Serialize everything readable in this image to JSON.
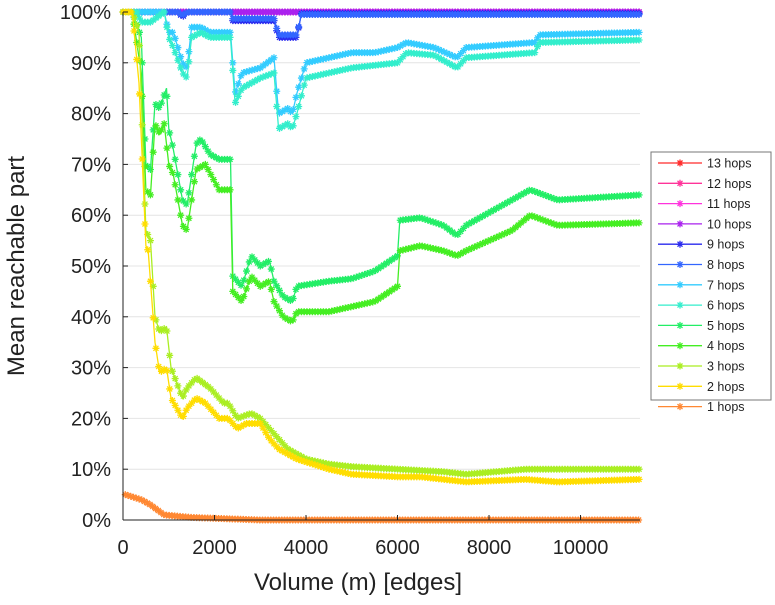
{
  "chart_data": {
    "type": "line",
    "title": "",
    "xlabel": "Volume (m) [edges]",
    "ylabel": "Mean reachable part",
    "xlim": [
      0,
      11300
    ],
    "ylim": [
      0,
      100
    ],
    "xticks": [
      0,
      2000,
      4000,
      6000,
      8000,
      10000
    ],
    "xtick_labels": [
      "0",
      "2000",
      "4000",
      "6000",
      "8000",
      "10000"
    ],
    "yticks": [
      0,
      10,
      20,
      30,
      40,
      50,
      60,
      70,
      80,
      90,
      100
    ],
    "ytick_labels": [
      "0%",
      "10%",
      "20%",
      "30%",
      "40%",
      "50%",
      "60%",
      "70%",
      "80%",
      "90%",
      "100%"
    ],
    "grid": "horizontal",
    "legend_position": "right",
    "series": [
      {
        "name": "13 hops",
        "color": "#ff2a2a",
        "points": [
          [
            0,
            100
          ],
          [
            11300,
            100
          ]
        ]
      },
      {
        "name": "12 hops",
        "color": "#ff3399",
        "points": [
          [
            0,
            100
          ],
          [
            11300,
            100
          ]
        ]
      },
      {
        "name": "11 hops",
        "color": "#ff33dd",
        "points": [
          [
            0,
            100
          ],
          [
            11300,
            100
          ]
        ]
      },
      {
        "name": "10 hops",
        "color": "#aa22ee",
        "points": [
          [
            0,
            100
          ],
          [
            11300,
            100
          ]
        ]
      },
      {
        "name": "9 hops",
        "color": "#2a2aee",
        "points": [
          [
            0,
            100
          ],
          [
            1200,
            100
          ],
          [
            1300,
            99
          ],
          [
            1400,
            100
          ],
          [
            2350,
            100
          ],
          [
            2400,
            98.3
          ],
          [
            3300,
            98.3
          ],
          [
            3400,
            95
          ],
          [
            3800,
            95
          ],
          [
            3900,
            99.7
          ],
          [
            11300,
            99.7
          ]
        ]
      },
      {
        "name": "8 hops",
        "color": "#3366ff",
        "points": [
          [
            0,
            100
          ],
          [
            1200,
            100
          ],
          [
            1300,
            99.3
          ],
          [
            1400,
            100
          ],
          [
            2350,
            100
          ],
          [
            2400,
            98.7
          ],
          [
            3300,
            98.7
          ],
          [
            3400,
            95.5
          ],
          [
            3800,
            95.5
          ],
          [
            3900,
            99.5
          ],
          [
            11300,
            99.5
          ]
        ]
      },
      {
        "name": "7 hops",
        "color": "#33ccff",
        "points": [
          [
            0,
            100
          ],
          [
            300,
            100
          ],
          [
            900,
            100
          ],
          [
            1000,
            96
          ],
          [
            1100,
            96
          ],
          [
            1300,
            90
          ],
          [
            1400,
            89
          ],
          [
            1500,
            97
          ],
          [
            1700,
            97
          ],
          [
            1900,
            96
          ],
          [
            2350,
            96
          ],
          [
            2450,
            84
          ],
          [
            2600,
            88
          ],
          [
            3000,
            89
          ],
          [
            3300,
            91
          ],
          [
            3400,
            80
          ],
          [
            3600,
            81
          ],
          [
            3700,
            80
          ],
          [
            3800,
            84
          ],
          [
            4000,
            90
          ],
          [
            4500,
            91
          ],
          [
            5000,
            92
          ],
          [
            5500,
            92
          ],
          [
            6000,
            93
          ],
          [
            6200,
            94
          ],
          [
            6800,
            93
          ],
          [
            7300,
            91
          ],
          [
            7500,
            93
          ],
          [
            9000,
            94
          ],
          [
            9100,
            95.5
          ],
          [
            11300,
            96
          ]
        ]
      },
      {
        "name": "6 hops",
        "color": "#33eecc",
        "points": [
          [
            0,
            100
          ],
          [
            300,
            100
          ],
          [
            400,
            98
          ],
          [
            600,
            98
          ],
          [
            900,
            100
          ],
          [
            1000,
            95
          ],
          [
            1100,
            93
          ],
          [
            1300,
            88
          ],
          [
            1400,
            87
          ],
          [
            1500,
            95
          ],
          [
            1700,
            96
          ],
          [
            1900,
            95
          ],
          [
            2350,
            95
          ],
          [
            2450,
            82
          ],
          [
            2600,
            85
          ],
          [
            3000,
            87
          ],
          [
            3300,
            88
          ],
          [
            3400,
            77
          ],
          [
            3600,
            78
          ],
          [
            3700,
            77
          ],
          [
            3800,
            80
          ],
          [
            4000,
            87
          ],
          [
            4500,
            88
          ],
          [
            5000,
            89
          ],
          [
            5500,
            89.5
          ],
          [
            6000,
            90
          ],
          [
            6200,
            92
          ],
          [
            6800,
            91.5
          ],
          [
            7300,
            89
          ],
          [
            7500,
            91
          ],
          [
            9000,
            92
          ],
          [
            9100,
            94
          ],
          [
            11300,
            94.5
          ]
        ]
      },
      {
        "name": "5 hops",
        "color": "#22ee66",
        "points": [
          [
            0,
            100
          ],
          [
            200,
            100
          ],
          [
            400,
            95
          ],
          [
            500,
            70
          ],
          [
            600,
            69
          ],
          [
            700,
            82
          ],
          [
            800,
            81
          ],
          [
            950,
            85
          ],
          [
            1000,
            77
          ],
          [
            1100,
            73
          ],
          [
            1300,
            63
          ],
          [
            1400,
            62
          ],
          [
            1600,
            74
          ],
          [
            1700,
            75
          ],
          [
            1900,
            72
          ],
          [
            2100,
            71
          ],
          [
            2350,
            71
          ],
          [
            2400,
            48
          ],
          [
            2600,
            46
          ],
          [
            2800,
            52
          ],
          [
            3000,
            50
          ],
          [
            3200,
            51
          ],
          [
            3300,
            47
          ],
          [
            3500,
            44
          ],
          [
            3700,
            43
          ],
          [
            3800,
            46
          ],
          [
            4500,
            47
          ],
          [
            5000,
            47.5
          ],
          [
            5500,
            49
          ],
          [
            6000,
            52
          ],
          [
            6050,
            59
          ],
          [
            6500,
            59.5
          ],
          [
            7000,
            58
          ],
          [
            7300,
            56
          ],
          [
            7500,
            58
          ],
          [
            8300,
            62
          ],
          [
            8900,
            65
          ],
          [
            9500,
            63
          ],
          [
            11300,
            64
          ]
        ]
      },
      {
        "name": "4 hops",
        "color": "#44ee22",
        "points": [
          [
            0,
            100
          ],
          [
            200,
            100
          ],
          [
            400,
            88
          ],
          [
            500,
            65
          ],
          [
            600,
            64
          ],
          [
            700,
            78
          ],
          [
            800,
            76
          ],
          [
            900,
            78
          ],
          [
            1000,
            70
          ],
          [
            1100,
            68
          ],
          [
            1300,
            58
          ],
          [
            1400,
            57
          ],
          [
            1600,
            69
          ],
          [
            1800,
            70
          ],
          [
            2100,
            65
          ],
          [
            2350,
            65
          ],
          [
            2400,
            45
          ],
          [
            2600,
            43
          ],
          [
            2800,
            48
          ],
          [
            3000,
            46
          ],
          [
            3200,
            47
          ],
          [
            3300,
            43
          ],
          [
            3500,
            40
          ],
          [
            3700,
            39
          ],
          [
            3800,
            41
          ],
          [
            4500,
            41
          ],
          [
            5000,
            42
          ],
          [
            5500,
            43
          ],
          [
            6000,
            46
          ],
          [
            6050,
            53
          ],
          [
            6500,
            54
          ],
          [
            7000,
            53
          ],
          [
            7300,
            52
          ],
          [
            7500,
            53
          ],
          [
            8500,
            57
          ],
          [
            8900,
            60
          ],
          [
            9500,
            58
          ],
          [
            11300,
            58.5
          ]
        ]
      },
      {
        "name": "3 hops",
        "color": "#aaee22",
        "points": [
          [
            0,
            100
          ],
          [
            200,
            100
          ],
          [
            350,
            96
          ],
          [
            500,
            57
          ],
          [
            600,
            55
          ],
          [
            700,
            40
          ],
          [
            800,
            37
          ],
          [
            950,
            38
          ],
          [
            1050,
            30
          ],
          [
            1300,
            24
          ],
          [
            1400,
            26
          ],
          [
            1600,
            28
          ],
          [
            1900,
            26
          ],
          [
            2200,
            23
          ],
          [
            2300,
            23
          ],
          [
            2500,
            20
          ],
          [
            2800,
            21
          ],
          [
            3000,
            20
          ],
          [
            3300,
            17
          ],
          [
            3600,
            14
          ],
          [
            4000,
            12
          ],
          [
            4500,
            11
          ],
          [
            5000,
            10.5
          ],
          [
            6000,
            10
          ],
          [
            7000,
            9.5
          ],
          [
            7500,
            9
          ],
          [
            8800,
            10
          ],
          [
            11300,
            10
          ]
        ]
      },
      {
        "name": "2 hops",
        "color": "#ffdd00",
        "points": [
          [
            0,
            100
          ],
          [
            200,
            100
          ],
          [
            350,
            86
          ],
          [
            500,
            54
          ],
          [
            550,
            53
          ],
          [
            700,
            35
          ],
          [
            800,
            29
          ],
          [
            950,
            30
          ],
          [
            1050,
            24
          ],
          [
            1300,
            20
          ],
          [
            1400,
            22
          ],
          [
            1600,
            24
          ],
          [
            1800,
            23
          ],
          [
            2100,
            20
          ],
          [
            2300,
            20
          ],
          [
            2500,
            18
          ],
          [
            2700,
            19
          ],
          [
            3000,
            19
          ],
          [
            3200,
            16
          ],
          [
            3400,
            14
          ],
          [
            3800,
            12
          ],
          [
            4500,
            10
          ],
          [
            5000,
            9
          ],
          [
            6000,
            8.5
          ],
          [
            6500,
            8.5
          ],
          [
            7500,
            7.5
          ],
          [
            8800,
            8
          ],
          [
            9500,
            7.5
          ],
          [
            11300,
            8
          ]
        ]
      },
      {
        "name": "1 hops",
        "color": "#ff8833",
        "points": [
          [
            50,
            5
          ],
          [
            400,
            4
          ],
          [
            600,
            3
          ],
          [
            900,
            1
          ],
          [
            1500,
            0.5
          ],
          [
            3000,
            0
          ],
          [
            11300,
            0
          ]
        ]
      }
    ]
  }
}
